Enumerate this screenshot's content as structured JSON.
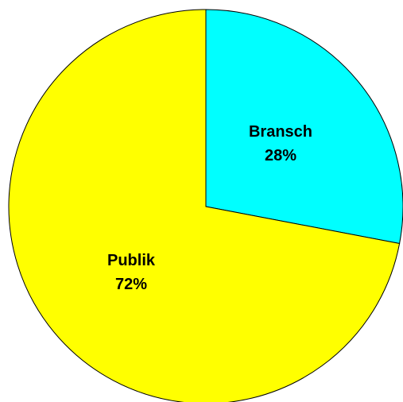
{
  "chart_data": {
    "type": "pie",
    "start_angle_deg": 0,
    "direction": "clockwise",
    "slices": [
      {
        "label": "Bransch",
        "percent_label": "28%",
        "value": 28,
        "color": "#00ffff"
      },
      {
        "label": "Publik",
        "percent_label": "72%",
        "value": 72,
        "color": "#ffff00"
      }
    ],
    "title": "",
    "legend": "none",
    "edge_color": "#000000"
  }
}
